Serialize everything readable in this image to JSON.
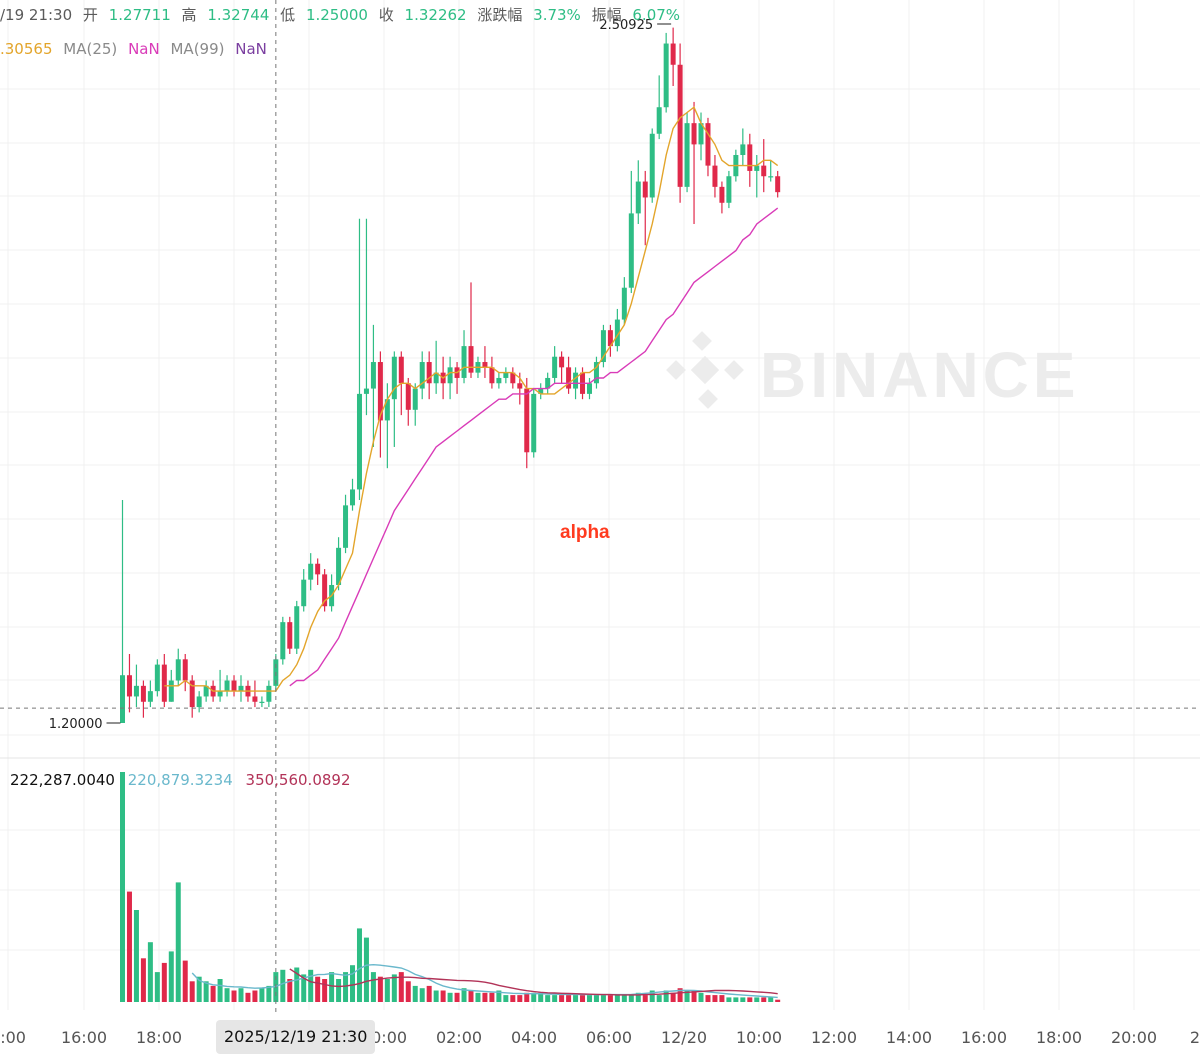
{
  "header": {
    "time": "/19 21:30",
    "open_label": "开",
    "open": "1.27711",
    "high_label": "高",
    "high": "1.32744",
    "low_label": "低",
    "low": "1.25000",
    "close_label": "收",
    "close": "1.32262",
    "change_label": "涨跌幅",
    "change": "3.73%",
    "amplitude_label": "振幅",
    "amplitude": "6.07%"
  },
  "ma": {
    "ma7_value": ".30565",
    "ma25_label": "MA(25)",
    "ma25_value": "NaN",
    "ma99_label": "MA(99)",
    "ma99_value": "NaN"
  },
  "volume_header": {
    "volume": "222,287.0040",
    "ma1": "220,879.3234",
    "ma2": "350,560.0892"
  },
  "annotation": "alpha",
  "watermark": "BINANCE",
  "crosshair_time": "2025/12/19 21:30",
  "colors": {
    "up": "#2ebd85",
    "down": "#e0294a",
    "ma7": "#e3a52b",
    "ma25": "#d93bb8",
    "ma99": "#7b3fa0",
    "vol_ma1": "#6ab8cc",
    "vol_ma2": "#b23358",
    "grid": "#f0f0f0",
    "annotation": "#ff3b1f"
  },
  "chart_data": {
    "type": "candlestick",
    "interval_minutes": 15,
    "first_candle_time": "2025/12/19 17:00",
    "price_labels": {
      "high": "2.50925",
      "low": "1.20000"
    },
    "x_tick_labels": [
      "4:00",
      "16:00",
      "18:00",
      "00:00",
      "02:00",
      "04:00",
      "06:00",
      "12/20",
      "10:00",
      "12:00",
      "14:00",
      "16:00",
      "18:00",
      "20:00",
      "2"
    ],
    "candles": [
      [
        1.2,
        1.29,
        1.62,
        1.2
      ],
      [
        1.29,
        1.25,
        1.33,
        1.22
      ],
      [
        1.25,
        1.27,
        1.31,
        1.23
      ],
      [
        1.27,
        1.24,
        1.28,
        1.21
      ],
      [
        1.24,
        1.26,
        1.28,
        1.23
      ],
      [
        1.26,
        1.31,
        1.32,
        1.25
      ],
      [
        1.31,
        1.24,
        1.33,
        1.23
      ],
      [
        1.24,
        1.28,
        1.3,
        1.24
      ],
      [
        1.28,
        1.32,
        1.34,
        1.27
      ],
      [
        1.32,
        1.28,
        1.33,
        1.26
      ],
      [
        1.28,
        1.23,
        1.29,
        1.21
      ],
      [
        1.23,
        1.25,
        1.26,
        1.22
      ],
      [
        1.25,
        1.27,
        1.28,
        1.24
      ],
      [
        1.27,
        1.25,
        1.28,
        1.24
      ],
      [
        1.25,
        1.26,
        1.3,
        1.24
      ],
      [
        1.26,
        1.28,
        1.29,
        1.25
      ],
      [
        1.28,
        1.26,
        1.29,
        1.25
      ],
      [
        1.26,
        1.27,
        1.29,
        1.24
      ],
      [
        1.27,
        1.25,
        1.28,
        1.24
      ],
      [
        1.25,
        1.24,
        1.28,
        1.23
      ],
      [
        1.24,
        1.24,
        1.25,
        1.23
      ],
      [
        1.24,
        1.27,
        1.28,
        1.23
      ],
      [
        1.27,
        1.32,
        1.33,
        1.26
      ],
      [
        1.32,
        1.39,
        1.4,
        1.31
      ],
      [
        1.39,
        1.34,
        1.4,
        1.33
      ],
      [
        1.34,
        1.42,
        1.43,
        1.33
      ],
      [
        1.42,
        1.47,
        1.49,
        1.41
      ],
      [
        1.47,
        1.5,
        1.52,
        1.45
      ],
      [
        1.5,
        1.48,
        1.51,
        1.46
      ],
      [
        1.48,
        1.42,
        1.49,
        1.41
      ],
      [
        1.42,
        1.46,
        1.48,
        1.41
      ],
      [
        1.46,
        1.53,
        1.55,
        1.45
      ],
      [
        1.53,
        1.61,
        1.63,
        1.52
      ],
      [
        1.61,
        1.64,
        1.66,
        1.6
      ],
      [
        1.64,
        1.82,
        2.15,
        1.62
      ],
      [
        1.82,
        1.83,
        2.15,
        1.78
      ],
      [
        1.83,
        1.88,
        1.95,
        1.72
      ],
      [
        1.88,
        1.77,
        1.9,
        1.7
      ],
      [
        1.77,
        1.81,
        1.84,
        1.68
      ],
      [
        1.81,
        1.89,
        1.9,
        1.72
      ],
      [
        1.89,
        1.84,
        1.9,
        1.78
      ],
      [
        1.84,
        1.79,
        1.85,
        1.76
      ],
      [
        1.79,
        1.83,
        1.84,
        1.76
      ],
      [
        1.83,
        1.88,
        1.9,
        1.81
      ],
      [
        1.88,
        1.84,
        1.9,
        1.81
      ],
      [
        1.84,
        1.86,
        1.92,
        1.82
      ],
      [
        1.86,
        1.84,
        1.89,
        1.81
      ],
      [
        1.84,
        1.87,
        1.89,
        1.81
      ],
      [
        1.87,
        1.85,
        1.88,
        1.82
      ],
      [
        1.85,
        1.91,
        1.94,
        1.84
      ],
      [
        1.91,
        1.86,
        2.03,
        1.85
      ],
      [
        1.86,
        1.88,
        1.89,
        1.85
      ],
      [
        1.88,
        1.87,
        1.91,
        1.85
      ],
      [
        1.87,
        1.84,
        1.89,
        1.83
      ],
      [
        1.84,
        1.85,
        1.86,
        1.83
      ],
      [
        1.85,
        1.86,
        1.87,
        1.84
      ],
      [
        1.86,
        1.84,
        1.87,
        1.83
      ],
      [
        1.84,
        1.83,
        1.86,
        1.8
      ],
      [
        1.83,
        1.71,
        1.85,
        1.68
      ],
      [
        1.71,
        1.82,
        1.83,
        1.7
      ],
      [
        1.82,
        1.83,
        1.84,
        1.81
      ],
      [
        1.83,
        1.85,
        1.86,
        1.82
      ],
      [
        1.85,
        1.89,
        1.91,
        1.84
      ],
      [
        1.89,
        1.87,
        1.9,
        1.84
      ],
      [
        1.87,
        1.83,
        1.89,
        1.82
      ],
      [
        1.83,
        1.86,
        1.87,
        1.81
      ],
      [
        1.86,
        1.82,
        1.87,
        1.81
      ],
      [
        1.82,
        1.84,
        1.85,
        1.81
      ],
      [
        1.84,
        1.88,
        1.89,
        1.83
      ],
      [
        1.88,
        1.94,
        1.95,
        1.87
      ],
      [
        1.94,
        1.91,
        1.95,
        1.89
      ],
      [
        1.91,
        1.96,
        1.98,
        1.9
      ],
      [
        1.96,
        2.02,
        2.04,
        1.95
      ],
      [
        2.02,
        2.16,
        2.24,
        2.01
      ],
      [
        2.16,
        2.22,
        2.26,
        2.14
      ],
      [
        2.22,
        2.19,
        2.24,
        2.1
      ],
      [
        2.19,
        2.31,
        2.32,
        2.18
      ],
      [
        2.31,
        2.36,
        2.42,
        2.3
      ],
      [
        2.36,
        2.48,
        2.5,
        2.35
      ],
      [
        2.48,
        2.44,
        2.51,
        2.4
      ],
      [
        2.44,
        2.21,
        2.48,
        2.18
      ],
      [
        2.21,
        2.33,
        2.35,
        2.2
      ],
      [
        2.33,
        2.29,
        2.37,
        2.14
      ],
      [
        2.29,
        2.33,
        2.35,
        2.26
      ],
      [
        2.33,
        2.25,
        2.34,
        2.23
      ],
      [
        2.25,
        2.21,
        2.27,
        2.19
      ],
      [
        2.21,
        2.18,
        2.22,
        2.16
      ],
      [
        2.18,
        2.23,
        2.24,
        2.17
      ],
      [
        2.23,
        2.27,
        2.28,
        2.22
      ],
      [
        2.27,
        2.29,
        2.32,
        2.25
      ],
      [
        2.29,
        2.24,
        2.31,
        2.21
      ],
      [
        2.24,
        2.25,
        2.27,
        2.19
      ],
      [
        2.25,
        2.23,
        2.3,
        2.2
      ],
      [
        2.23,
        2.23,
        2.26,
        2.22
      ],
      [
        2.23,
        2.2,
        2.24,
        2.19
      ]
    ],
    "ma7": [
      null,
      null,
      null,
      null,
      null,
      null,
      1.27,
      1.27,
      1.27,
      1.28,
      1.27,
      1.27,
      1.27,
      1.26,
      1.26,
      1.26,
      1.26,
      1.26,
      1.26,
      1.26,
      1.26,
      1.26,
      1.26,
      1.28,
      1.29,
      1.31,
      1.34,
      1.38,
      1.41,
      1.43,
      1.44,
      1.46,
      1.49,
      1.52,
      1.6,
      1.67,
      1.73,
      1.78,
      1.81,
      1.83,
      1.84,
      1.84,
      1.83,
      1.84,
      1.85,
      1.86,
      1.85,
      1.86,
      1.86,
      1.87,
      1.87,
      1.87,
      1.87,
      1.87,
      1.86,
      1.86,
      1.86,
      1.85,
      1.83,
      1.83,
      1.82,
      1.82,
      1.82,
      1.83,
      1.84,
      1.85,
      1.86,
      1.86,
      1.87,
      1.89,
      1.91,
      1.93,
      1.95,
      1.99,
      2.04,
      2.09,
      2.14,
      2.2,
      2.27,
      2.32,
      2.34,
      2.35,
      2.36,
      2.33,
      2.31,
      2.29,
      2.26,
      2.25,
      2.25,
      2.25,
      2.25,
      2.25,
      2.26,
      2.26,
      2.25
    ],
    "ma25": [
      null,
      null,
      null,
      null,
      null,
      null,
      null,
      null,
      null,
      null,
      null,
      null,
      null,
      null,
      null,
      null,
      null,
      null,
      null,
      null,
      null,
      null,
      null,
      null,
      1.27,
      1.28,
      1.28,
      1.29,
      1.3,
      1.32,
      1.34,
      1.36,
      1.39,
      1.42,
      1.45,
      1.48,
      1.51,
      1.54,
      1.57,
      1.6,
      1.62,
      1.64,
      1.66,
      1.68,
      1.7,
      1.72,
      1.73,
      1.74,
      1.75,
      1.76,
      1.77,
      1.78,
      1.79,
      1.8,
      1.81,
      1.81,
      1.82,
      1.82,
      1.82,
      1.83,
      1.83,
      1.83,
      1.84,
      1.84,
      1.84,
      1.84,
      1.84,
      1.84,
      1.85,
      1.85,
      1.86,
      1.86,
      1.87,
      1.88,
      1.89,
      1.9,
      1.92,
      1.94,
      1.96,
      1.97,
      1.99,
      2.01,
      2.03,
      2.04,
      2.05,
      2.06,
      2.07,
      2.08,
      2.09,
      2.11,
      2.12,
      2.14,
      2.15,
      2.16,
      2.17
    ],
    "volume": [
      100,
      48,
      40,
      19,
      26,
      13,
      17,
      22,
      52,
      18,
      9,
      11,
      9,
      7,
      10,
      6,
      5,
      6,
      4,
      5,
      6,
      7,
      13,
      14,
      10,
      15,
      12,
      14,
      11,
      10,
      13,
      10,
      13,
      16,
      32,
      28,
      13,
      11,
      10,
      12,
      13,
      9,
      7,
      6,
      7,
      5,
      5,
      4,
      4,
      6,
      5,
      4,
      4,
      4,
      5,
      3,
      3,
      3,
      4,
      4,
      4,
      3,
      3,
      3,
      3,
      3,
      3,
      3,
      3,
      3,
      3,
      3,
      3,
      3,
      4,
      3,
      5,
      3,
      5,
      4,
      6,
      5,
      5,
      4,
      3,
      3,
      3,
      2,
      2,
      2,
      2,
      2,
      2,
      2,
      1
    ],
    "volume_ma1": [
      null,
      null,
      null,
      null,
      null,
      null,
      null,
      null,
      null,
      null,
      12.6,
      9.4,
      8.2,
      7.5,
      7.2,
      6.8,
      6.6,
      6.5,
      6.2,
      6.0,
      6.1,
      6.4,
      6.8,
      8.0,
      9.0,
      9.6,
      10.5,
      11.2,
      11.9,
      12.0,
      12.4,
      12.0,
      11.6,
      12.2,
      14.5,
      16.0,
      16.2,
      16.0,
      15.6,
      15.2,
      14.8,
      13.6,
      12.0,
      11.0,
      9.8,
      8.2,
      7.0,
      6.2,
      5.6,
      5.2,
      5.0,
      4.8,
      4.6,
      4.4,
      4.2,
      4.0,
      3.8,
      3.7,
      3.6,
      3.6,
      3.6,
      3.5,
      3.4,
      3.3,
      3.3,
      3.3,
      3.2,
      3.2,
      3.2,
      3.2,
      3.2,
      3.2,
      3.2,
      3.3,
      3.5,
      3.8,
      4.0,
      4.3,
      4.6,
      4.8,
      5.0,
      5.1,
      5.0,
      4.8,
      4.4,
      4.1,
      3.8,
      3.5,
      3.2,
      3.0,
      2.8,
      2.6,
      2.4,
      2.2,
      2.0
    ],
    "volume_ma2": [
      null,
      null,
      null,
      null,
      null,
      null,
      null,
      null,
      null,
      null,
      null,
      null,
      null,
      null,
      null,
      null,
      null,
      null,
      null,
      null,
      null,
      null,
      null,
      null,
      14.4,
      12.4,
      10.4,
      8.8,
      8.2,
      7.6,
      7.0,
      6.8,
      6.9,
      7.4,
      8.0,
      9.0,
      9.6,
      10.0,
      10.4,
      10.6,
      10.8,
      10.8,
      10.6,
      10.3,
      10.2,
      10.0,
      9.8,
      9.6,
      9.4,
      9.3,
      9.2,
      9.0,
      8.6,
      8.0,
      7.2,
      6.6,
      6.0,
      5.4,
      4.9,
      4.5,
      4.2,
      4.0,
      3.9,
      3.8,
      3.7,
      3.6,
      3.5,
      3.4,
      3.3,
      3.2,
      3.2,
      3.1,
      3.1,
      3.1,
      3.1,
      3.2,
      3.3,
      3.4,
      3.6,
      3.8,
      4.0,
      4.2,
      4.4,
      4.6,
      4.8,
      5.0,
      5.0,
      5.0,
      4.9,
      4.8,
      4.6,
      4.4,
      4.2,
      4.0,
      3.6
    ],
    "volume_max": 100,
    "price_range": [
      1.2,
      2.50925
    ],
    "crosshair": {
      "index": 22,
      "price": 1.228
    }
  }
}
